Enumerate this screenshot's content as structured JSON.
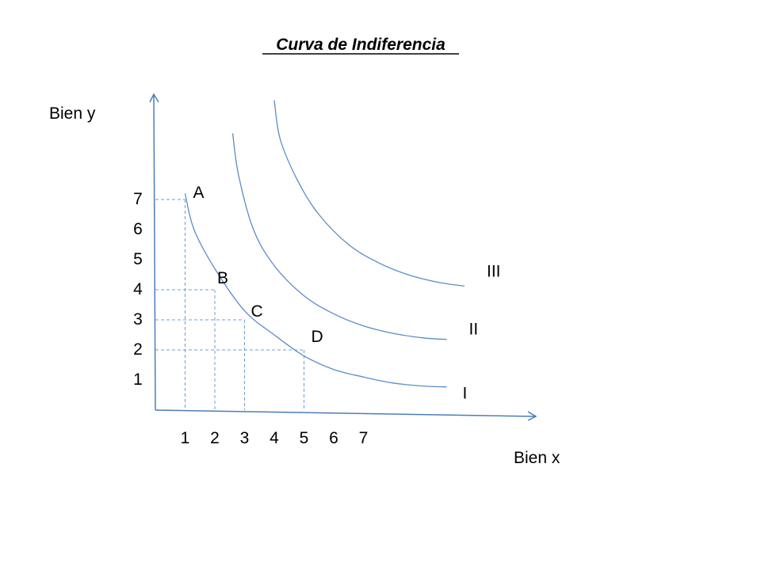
{
  "chart_data": {
    "type": "line",
    "title": "Curva de Indiferencia",
    "xlabel": "Bien x",
    "ylabel": "Bien y",
    "x_ticks": [
      "1",
      "2",
      "3",
      "4",
      "5",
      "6",
      "7"
    ],
    "y_ticks": [
      "1",
      "2",
      "3",
      "4",
      "5",
      "6",
      "7"
    ],
    "xlim": [
      0,
      12.8
    ],
    "ylim": [
      0,
      10.5
    ],
    "grid": false,
    "colors": {
      "axis": "#4a7dbe",
      "curve": "#5b8cc9",
      "guide": "#6f9bd1",
      "text": "#000000"
    },
    "series": [
      {
        "name": "I",
        "x": [
          1,
          1.3,
          2,
          3,
          4,
          5,
          6,
          7,
          8,
          9,
          9.8
        ],
        "y": [
          7.2,
          6,
          4.7,
          3.3,
          2.5,
          1.8,
          1.35,
          1.1,
          0.9,
          0.8,
          0.77
        ]
      },
      {
        "name": "II",
        "x": [
          2.6,
          2.8,
          3.3,
          4,
          5,
          6,
          7,
          8,
          9,
          9.8
        ],
        "y": [
          9.2,
          7.8,
          6.0,
          4.8,
          3.8,
          3.2,
          2.8,
          2.55,
          2.4,
          2.35
        ]
      },
      {
        "name": "III",
        "x": [
          4.0,
          4.2,
          4.8,
          5.5,
          6.5,
          7.5,
          8.5,
          9.5,
          10.4
        ],
        "y": [
          10.3,
          9.0,
          7.6,
          6.5,
          5.5,
          4.9,
          4.5,
          4.25,
          4.12
        ]
      }
    ],
    "points": [
      {
        "label": "A",
        "x": 1,
        "y": 7
      },
      {
        "label": "B",
        "x": 2,
        "y": 4
      },
      {
        "label": "C",
        "x": 3,
        "y": 3
      },
      {
        "label": "D",
        "x": 5,
        "y": 2
      }
    ]
  }
}
